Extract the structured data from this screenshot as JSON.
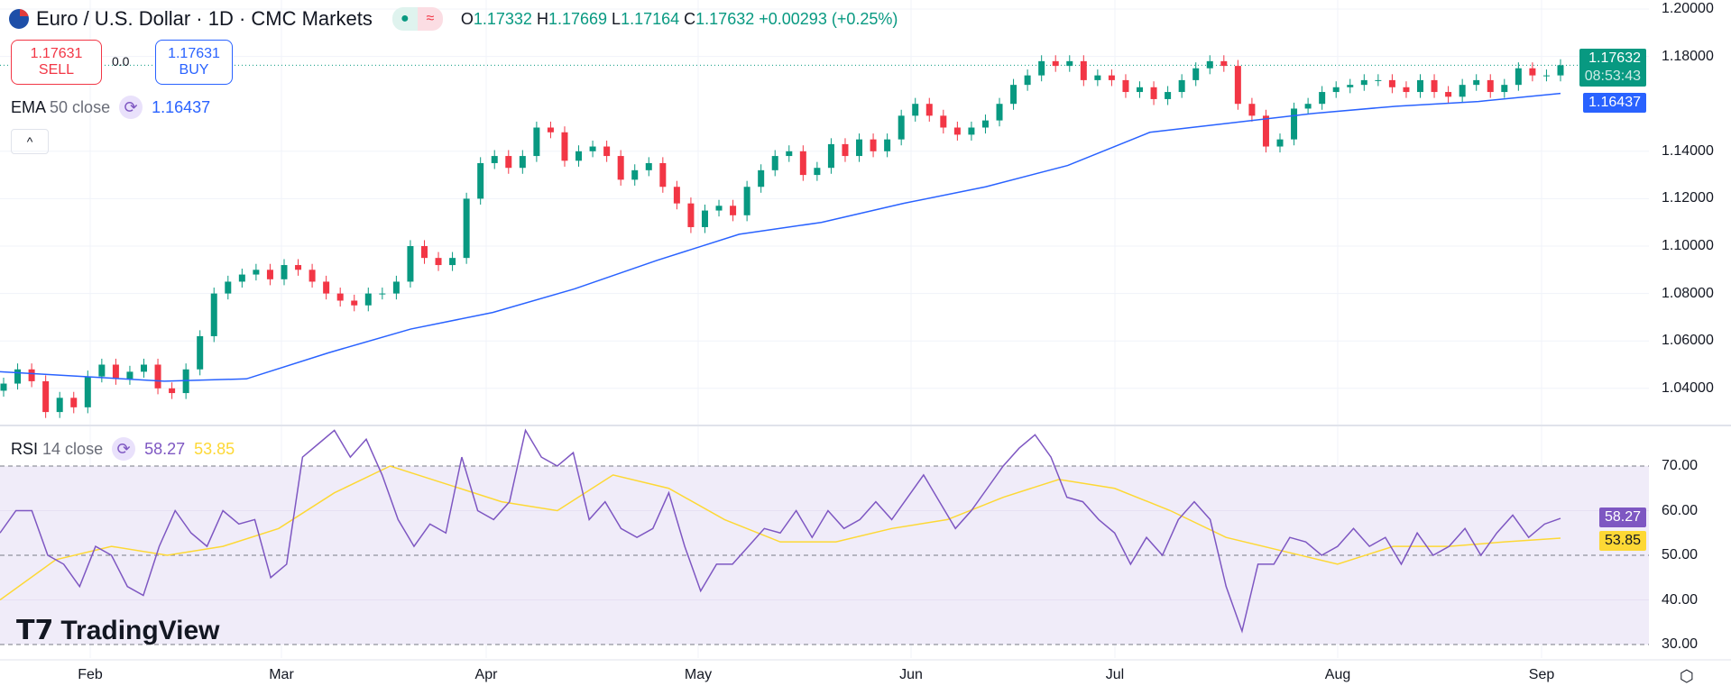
{
  "header": {
    "title": "Euro / U.S. Dollar · 1D · CMC Markets",
    "ohlc": {
      "o_label": "O",
      "o": "1.17332",
      "h_label": "H",
      "h": "1.17669",
      "l_label": "L",
      "l": "1.17164",
      "c_label": "C",
      "c": "1.17632",
      "change": "+0.00293 (+0.25%)"
    }
  },
  "trade": {
    "sell_price": "1.17631",
    "sell_label": "SELL",
    "spread": "0.0",
    "buy_price": "1.17631",
    "buy_label": "BUY"
  },
  "ema_legend": {
    "name": "EMA",
    "params": "50 close",
    "value": "1.16437"
  },
  "rsi_legend": {
    "name": "RSI",
    "params": "14 close",
    "value": "58.27",
    "ma_value": "53.85"
  },
  "price_axis": [
    "1.20000",
    "1.18000",
    "1.14000",
    "1.12000",
    "1.10000",
    "1.08000",
    "1.06000",
    "1.04000"
  ],
  "price_tags": {
    "last": "1.17632",
    "countdown": "08:53:43",
    "ema": "1.16437"
  },
  "rsi_axis": [
    "70.00",
    "60.00",
    "50.00",
    "40.00",
    "30.00"
  ],
  "rsi_tags": {
    "rsi": "58.27",
    "ma": "53.85"
  },
  "months": [
    "Feb",
    "Mar",
    "Apr",
    "May",
    "Jun",
    "Jul",
    "Aug",
    "Sep"
  ],
  "logo": "TradingView",
  "colors": {
    "up": "#089981",
    "down": "#f23645",
    "ema": "#2962ff",
    "rsi": "#7e57c2",
    "rsi_ma": "#fdd835",
    "band": "#f0ecf9"
  },
  "chart_data": {
    "type": "candlestick",
    "price_range": [
      1.025,
      1.2
    ],
    "closes": [
      1.042,
      1.048,
      1.043,
      1.03,
      1.036,
      1.032,
      1.045,
      1.05,
      1.044,
      1.047,
      1.05,
      1.04,
      1.038,
      1.048,
      1.062,
      1.08,
      1.085,
      1.088,
      1.09,
      1.086,
      1.092,
      1.09,
      1.085,
      1.08,
      1.077,
      1.075,
      1.08,
      1.08,
      1.085,
      1.1,
      1.095,
      1.092,
      1.095,
      1.12,
      1.135,
      1.138,
      1.133,
      1.138,
      1.15,
      1.148,
      1.136,
      1.14,
      1.142,
      1.138,
      1.128,
      1.132,
      1.135,
      1.125,
      1.118,
      1.108,
      1.115,
      1.117,
      1.113,
      1.125,
      1.132,
      1.138,
      1.14,
      1.13,
      1.133,
      1.143,
      1.138,
      1.145,
      1.14,
      1.145,
      1.155,
      1.16,
      1.155,
      1.15,
      1.147,
      1.15,
      1.153,
      1.16,
      1.168,
      1.172,
      1.178,
      1.176,
      1.178,
      1.17,
      1.172,
      1.17,
      1.165,
      1.167,
      1.162,
      1.165,
      1.17,
      1.175,
      1.178,
      1.176,
      1.16,
      1.155,
      1.142,
      1.145,
      1.158,
      1.16,
      1.165,
      1.167,
      1.168,
      1.17,
      1.17,
      1.167,
      1.165,
      1.17,
      1.165,
      1.163,
      1.168,
      1.17,
      1.165,
      1.168,
      1.175,
      1.172,
      1.172,
      1.1763
    ],
    "ema50": [
      1.047,
      1.045,
      1.043,
      1.044,
      1.055,
      1.065,
      1.072,
      1.082,
      1.094,
      1.105,
      1.11,
      1.118,
      1.125,
      1.134,
      1.148,
      1.152,
      1.156,
      1.159,
      1.161,
      1.1644
    ],
    "rsi_range": [
      25,
      80
    ],
    "rsi": [
      55,
      60,
      60,
      50,
      48,
      43,
      52,
      50,
      43,
      41,
      52,
      60,
      55,
      52,
      60,
      57,
      58,
      45,
      48,
      72,
      75,
      78,
      72,
      76,
      68,
      58,
      52,
      57,
      55,
      72,
      60,
      58,
      62,
      78,
      72,
      70,
      73,
      58,
      62,
      56,
      54,
      56,
      64,
      52,
      42,
      48,
      48,
      52,
      56,
      55,
      60,
      54,
      60,
      56,
      58,
      62,
      58,
      63,
      68,
      62,
      56,
      60,
      65,
      70,
      74,
      77,
      72,
      63,
      62,
      58,
      55,
      48,
      54,
      50,
      58,
      62,
      58,
      43,
      33,
      48,
      48,
      54,
      53,
      50,
      52,
      56,
      52,
      54,
      48,
      55,
      50,
      52,
      56,
      50,
      55,
      59,
      54,
      57,
      58.27
    ],
    "rsi_ma": [
      40,
      49,
      52,
      50,
      52,
      56,
      64,
      70,
      66,
      62,
      60,
      68,
      65,
      58,
      53,
      53,
      56,
      58,
      63,
      67,
      65,
      60,
      54,
      51,
      48,
      52,
      52,
      53,
      53.85
    ],
    "rsi_levels": [
      70,
      50,
      30
    ]
  }
}
